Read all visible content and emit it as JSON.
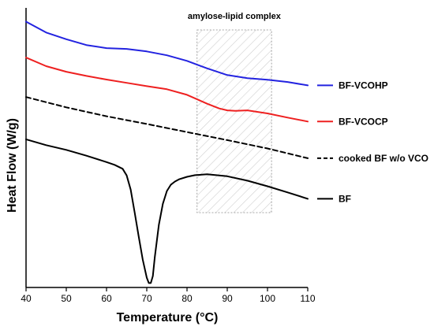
{
  "chart_data": {
    "type": "line",
    "title": "",
    "xlabel": "Temperature (°C)",
    "ylabel": "Heat Flow (W/g)",
    "xlim": [
      40,
      110
    ],
    "x_ticks": [
      40,
      50,
      60,
      70,
      80,
      90,
      100,
      110
    ],
    "ylim": [
      0,
      100
    ],
    "y_ticks_shown": false,
    "grid": false,
    "legend_placement": "right",
    "annotation": {
      "label": "amylose-lipid complex",
      "x_range": [
        82.5,
        101
      ]
    },
    "series": [
      {
        "name": "BF-VCOHP",
        "color": "#2323e0",
        "dash": "solid",
        "x": [
          40,
          45,
          50,
          55,
          60,
          65,
          70,
          75,
          80,
          85,
          90,
          95,
          100,
          105,
          110
        ],
        "y": [
          95.6,
          91.7,
          89.3,
          87.2,
          86.1,
          85.8,
          84.9,
          83.5,
          81.5,
          78.8,
          76.4,
          75.3,
          74.7,
          73.9,
          72.7
        ]
      },
      {
        "name": "BF-VCOCP",
        "color": "#ee2020",
        "dash": "solid",
        "x": [
          40,
          45,
          50,
          55,
          60,
          65,
          70,
          75,
          80,
          85,
          88,
          90,
          92,
          95,
          100,
          105,
          110
        ],
        "y": [
          82.7,
          79.6,
          77.6,
          76.1,
          74.8,
          73.6,
          72.4,
          71.3,
          69.3,
          66.1,
          64.4,
          63.7,
          63.5,
          63.7,
          62.6,
          61.1,
          59.7
        ]
      },
      {
        "name": "cooked BF w/o VCO",
        "color": "#000000",
        "dash": "dashed",
        "x": [
          40,
          50,
          60,
          70,
          80,
          90,
          100,
          110
        ],
        "y": [
          68.5,
          64.8,
          61.6,
          58.8,
          55.9,
          53.0,
          50.0,
          46.5
        ]
      },
      {
        "name": "BF",
        "color": "#000000",
        "dash": "solid",
        "x": [
          40,
          45,
          50,
          55,
          60,
          62,
          64,
          65,
          66,
          67,
          68,
          69,
          70,
          70.5,
          71,
          71.5,
          72,
          73,
          74,
          75,
          76,
          77,
          78,
          80,
          82,
          85,
          90,
          95,
          100,
          105,
          110
        ],
        "y": [
          53.3,
          51.2,
          49.5,
          47.4,
          45.1,
          44.1,
          42.7,
          40.3,
          35.2,
          26.9,
          18.3,
          10.0,
          3.5,
          1.6,
          1.6,
          4.1,
          11.0,
          22.5,
          30.1,
          34.7,
          37.0,
          38.1,
          38.9,
          39.8,
          40.4,
          40.7,
          40.0,
          38.4,
          36.4,
          34.2,
          31.9
        ]
      }
    ]
  }
}
